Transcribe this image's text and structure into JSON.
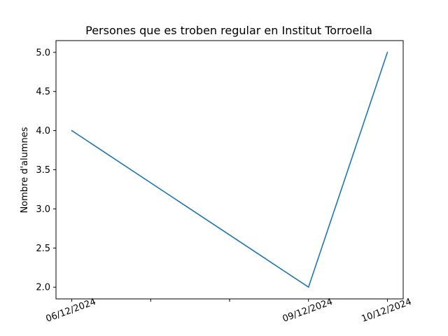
{
  "chart_data": {
    "type": "line",
    "title": "Persones que es troben regular en Institut Torroella",
    "xlabel": "",
    "ylabel": "Nombre d'alumnes",
    "grid": false,
    "x": [
      "06/12/2024",
      "09/12/2024",
      "10/12/2024"
    ],
    "x_axis_range": [
      "06/12/2024",
      "10/12/2024"
    ],
    "x_minor_ticks": [
      "07/12/2024",
      "08/12/2024"
    ],
    "series": [
      {
        "values": [
          4,
          2,
          5
        ],
        "color": "#1f77b4"
      }
    ],
    "y_ticks": [
      "2.0",
      "2.5",
      "3.0",
      "3.5",
      "4.0",
      "4.5",
      "5.0"
    ],
    "ylim": [
      1.85,
      5.15
    ]
  }
}
